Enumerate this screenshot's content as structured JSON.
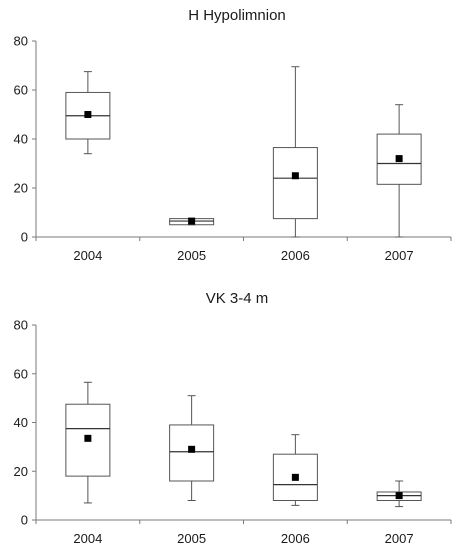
{
  "chart_data": [
    {
      "type": "box",
      "title": "H Hypolimnion",
      "xlabel": "",
      "ylabel": "",
      "ylim": [
        0,
        80
      ],
      "yticks": [
        0,
        20,
        40,
        60,
        80
      ],
      "grid": false,
      "categories": [
        "2004",
        "2005",
        "2006",
        "2007"
      ],
      "boxes": [
        {
          "min": 34,
          "q1": 40,
          "median": 49.5,
          "q3": 59,
          "max": 67.5,
          "mean": 50
        },
        {
          "min": 5,
          "q1": 5,
          "median": 6.5,
          "q3": 7.5,
          "max": 7.5,
          "mean": 6.5
        },
        {
          "min": 0,
          "q1": 7.5,
          "median": 24,
          "q3": 36.5,
          "max": 69.5,
          "mean": 25
        },
        {
          "min": 0,
          "q1": 21.5,
          "median": 30,
          "q3": 42,
          "max": 54,
          "mean": 32
        }
      ]
    },
    {
      "type": "box",
      "title": "VK 3-4 m",
      "xlabel": "",
      "ylabel": "",
      "ylim": [
        0,
        80
      ],
      "yticks": [
        0,
        20,
        40,
        60,
        80
      ],
      "grid": false,
      "categories": [
        "2004",
        "2005",
        "2006",
        "2007"
      ],
      "boxes": [
        {
          "min": 7,
          "q1": 18,
          "median": 37.5,
          "q3": 47.5,
          "max": 56.5,
          "mean": 33.5
        },
        {
          "min": 8,
          "q1": 16,
          "median": 28,
          "q3": 39,
          "max": 51,
          "mean": 29
        },
        {
          "min": 6,
          "q1": 8,
          "median": 14.5,
          "q3": 27,
          "max": 35,
          "mean": 17.5
        },
        {
          "min": 5.5,
          "q1": 8,
          "median": 10,
          "q3": 11.5,
          "max": 16,
          "mean": 10
        }
      ]
    }
  ]
}
